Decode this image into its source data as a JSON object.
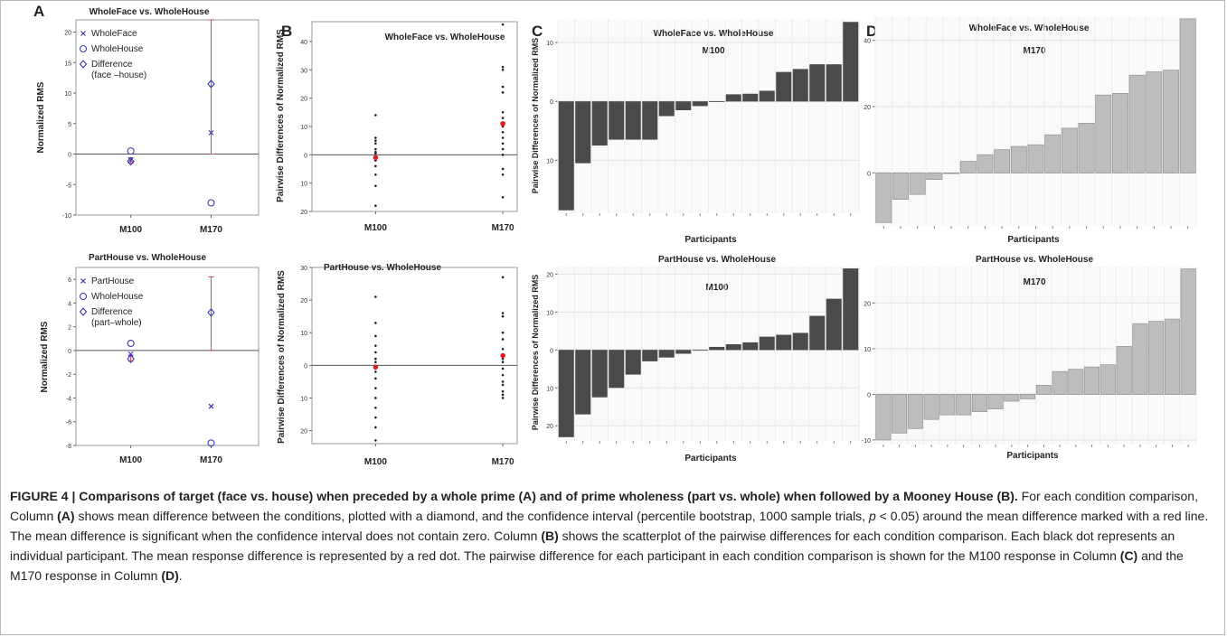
{
  "panel_letters": [
    "A",
    "B",
    "C",
    "D"
  ],
  "caption": {
    "title": "FIGURE 4 | Comparisons of target (face vs. house) when preceded by a whole prime (A) and of prime wholeness (part vs. whole) when followed by a Mooney House (B).",
    "body_1": " For each condition comparison, Column ",
    "ref_a": "(A)",
    "body_2": " shows mean difference between the conditions, plotted with a diamond, and the confidence interval (percentile bootstrap, 1000 sample trials, ",
    "p_sym": "p",
    "body_3": " < 0.05) around the mean difference marked with a red line. The mean difference is significant when the confidence interval does not contain zero. Column ",
    "ref_b": "(B)",
    "body_4": " shows the scatterplot of the pairwise differences for each condition comparison. Each black dot represents an individual participant. The mean response difference is represented by a red dot. The pairwise difference for each participant in each condition comparison is shown for the M100 response in Column ",
    "ref_c": "(C)",
    "body_5": " and the M170 response in Column ",
    "ref_d": "(D)",
    "body_6": "."
  },
  "colors": {
    "bar_dark": "#4a4a4a",
    "bar_light": "#bdbdbd",
    "marker_blue": "#3b3bb0",
    "ci_red": "#c0504d",
    "mean_red": "#e02020",
    "dot": "#222222"
  },
  "chart_data": [
    {
      "panel": "A",
      "row": "top",
      "type": "scatter",
      "title": "WholeFace vs. WholeHouse",
      "ylabel": "Normalized RMS",
      "categories": [
        "M100",
        "M170"
      ],
      "ylim": [
        -10,
        22
      ],
      "yticks": [
        -10,
        -5,
        0,
        5,
        10,
        15,
        20
      ],
      "legend": [
        {
          "label": "WholeFace",
          "marker": "x"
        },
        {
          "label": "WholeHouse",
          "marker": "circle"
        },
        {
          "label": "Difference",
          "sub": "(face –house)",
          "marker": "diamond"
        }
      ],
      "series": [
        {
          "name": "WholeFace",
          "values": [
            -1.0,
            3.5
          ]
        },
        {
          "name": "WholeHouse",
          "values": [
            0.5,
            -8.0
          ]
        },
        {
          "name": "Difference",
          "values": [
            -1.2,
            11.5
          ]
        }
      ],
      "ci": [
        [
          -1.5,
          -0.6
        ],
        [
          0,
          22
        ]
      ]
    },
    {
      "panel": "A",
      "row": "bottom",
      "type": "scatter",
      "title": "PartHouse vs. WholeHouse",
      "ylabel": "Normalized RMS",
      "categories": [
        "M100",
        "M170"
      ],
      "ylim": [
        -8,
        7
      ],
      "yticks": [
        -8,
        -6,
        -4,
        -2,
        0,
        2,
        4,
        6
      ],
      "legend": [
        {
          "label": "PartHouse",
          "marker": "x"
        },
        {
          "label": "WholeHouse",
          "marker": "circle"
        },
        {
          "label": "Difference",
          "sub": "(part–whole)",
          "marker": "diamond"
        }
      ],
      "series": [
        {
          "name": "PartHouse",
          "values": [
            -0.3,
            -4.7
          ]
        },
        {
          "name": "WholeHouse",
          "values": [
            0.6,
            -7.8
          ]
        },
        {
          "name": "Difference",
          "values": [
            -0.7,
            3.2
          ]
        }
      ],
      "ci": [
        [
          -0.9,
          -0.4
        ],
        [
          0,
          6.2
        ]
      ]
    },
    {
      "panel": "B",
      "row": "top",
      "type": "scatter",
      "title": "WholeFace vs. WholeHouse",
      "ylabel": "Pairwise Differences of Normalized RMS",
      "categories": [
        "M100",
        "M170"
      ],
      "ylim": [
        -20,
        47
      ],
      "yticks": [
        -20,
        -10,
        0,
        10,
        20,
        30,
        40
      ],
      "tick_labels": [
        "20",
        "10",
        "0",
        "10",
        "20",
        "30",
        "40"
      ],
      "points": [
        [
          14,
          6,
          5,
          4,
          2,
          1,
          0.5,
          -0.5,
          -1,
          -2,
          -4,
          -7,
          -11,
          -18
        ],
        [
          46,
          31,
          30,
          24,
          22,
          15,
          13,
          10,
          8,
          6,
          4,
          2,
          0,
          -5,
          -7,
          -15
        ]
      ],
      "means": [
        -1,
        11
      ]
    },
    {
      "panel": "B",
      "row": "bottom",
      "type": "scatter",
      "title": "PartHouse vs. WholeHouse",
      "ylabel": "Pairwise Differences of Normalized RMS",
      "categories": [
        "M100",
        "M170"
      ],
      "ylim": [
        -24,
        30
      ],
      "yticks": [
        -20,
        -10,
        0,
        10,
        20,
        30
      ],
      "tick_labels": [
        "20",
        "10",
        "0",
        "10",
        "20",
        "30"
      ],
      "points": [
        [
          21,
          13,
          9,
          6,
          4,
          2,
          1,
          -1,
          -2,
          -4,
          -7,
          -10,
          -13,
          -16,
          -19,
          -23
        ],
        [
          27,
          16,
          15,
          10,
          8,
          5,
          3,
          2,
          1,
          -1,
          -3,
          -5,
          -6,
          -8,
          -9,
          -10
        ]
      ],
      "means": [
        -0.5,
        3
      ]
    },
    {
      "panel": "C",
      "row": "top",
      "type": "bar",
      "title": "WholeFace vs. WholeHouse",
      "subtitle": "M100",
      "xlabel": "Participants",
      "ylabel": "Pairwise Differences of Normalized RMS",
      "ylim": [
        -19,
        14
      ],
      "yticks": [
        -10,
        0,
        10
      ],
      "tick_labels": [
        "10",
        "0",
        "10"
      ],
      "values": [
        -18.5,
        -10.5,
        -7.5,
        -6.5,
        -6.5,
        -6.5,
        -2.5,
        -1.5,
        -0.8,
        0,
        1.2,
        1.3,
        1.8,
        5,
        5.5,
        6.3,
        6.3,
        13.5
      ]
    },
    {
      "panel": "C",
      "row": "bottom",
      "type": "bar",
      "title": "PartHouse vs. WholeHouse",
      "subtitle": "M100",
      "xlabel": "Participants",
      "ylabel": "Pairwise Differences of Normalized RMS",
      "ylim": [
        -24,
        22
      ],
      "yticks": [
        -20,
        -10,
        0,
        10,
        20
      ],
      "tick_labels": [
        "20",
        "10",
        "0",
        "10",
        "20"
      ],
      "values": [
        -23,
        -17,
        -12.5,
        -10,
        -6.5,
        -3,
        -2,
        -1,
        0,
        0.8,
        1.5,
        2,
        3.5,
        4,
        4.5,
        9,
        13.5,
        21.5
      ]
    },
    {
      "panel": "D",
      "row": "top",
      "type": "bar",
      "title": "WholeFace vs. WholeHouse",
      "subtitle": "M170",
      "xlabel": "Participants",
      "ylim": [
        -16,
        47
      ],
      "yticks": [
        0,
        20,
        40
      ],
      "values": [
        -15,
        -8,
        -6.5,
        -2,
        0,
        3.5,
        5.5,
        7,
        8,
        8.5,
        11.5,
        13.5,
        15,
        23.5,
        24,
        29.5,
        30.5,
        31,
        46.5
      ]
    },
    {
      "panel": "D",
      "row": "bottom",
      "type": "bar",
      "title": "PartHouse vs. WholeHouse",
      "subtitle": "M170",
      "xlabel": "Participants",
      "ylim": [
        -11,
        28
      ],
      "yticks": [
        -10,
        0,
        10,
        20
      ],
      "values": [
        -10,
        -8.5,
        -7.5,
        -5.5,
        -4.5,
        -4.5,
        -3.8,
        -3.2,
        -1.5,
        -1,
        2,
        5,
        5.5,
        6,
        6.5,
        10.5,
        15.5,
        16,
        16.5,
        27.5
      ]
    }
  ]
}
